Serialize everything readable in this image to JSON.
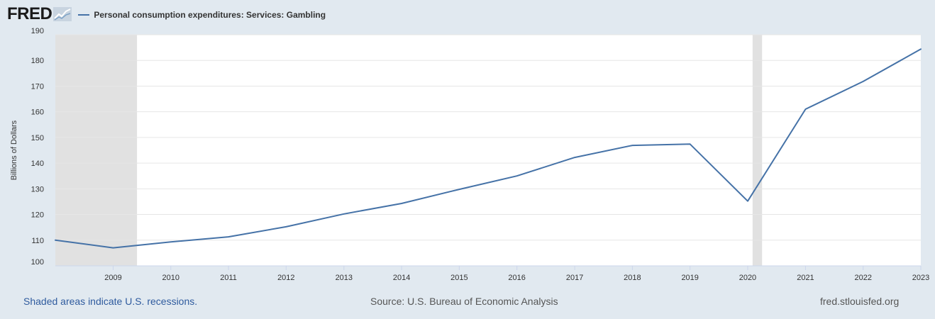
{
  "header": {
    "logo_text": "FRED",
    "logo_icon": "fred-graph-icon"
  },
  "legend": {
    "label": "Personal consumption expenditures: Services: Gambling",
    "color": "#4572a7"
  },
  "footer": {
    "note": "Shaded areas indicate U.S. recessions.",
    "source": "Source: U.S. Bureau of Economic Analysis",
    "url": "fred.stlouisfed.org"
  },
  "chart_data": {
    "type": "line",
    "title": "",
    "xlabel": "",
    "ylabel": "Billions of Dollars",
    "xlim": [
      "2008-01-01",
      "2023-01-01"
    ],
    "ylim": [
      100,
      190
    ],
    "yticks": [
      100,
      110,
      120,
      130,
      140,
      150,
      160,
      170,
      180,
      190
    ],
    "xticks": [
      "2009",
      "2010",
      "2011",
      "2012",
      "2013",
      "2014",
      "2015",
      "2016",
      "2017",
      "2018",
      "2019",
      "2020",
      "2021",
      "2022",
      "2023"
    ],
    "grid": true,
    "legend_position": "top-left",
    "recession_shading": [
      {
        "start": "2008-01-01",
        "end": "2009-06-01"
      },
      {
        "start": "2020-02-01",
        "end": "2020-04-01"
      }
    ],
    "series": [
      {
        "name": "Personal consumption expenditures: Services: Gambling",
        "color": "#4572a7",
        "x": [
          "2008-01-01",
          "2009-01-01",
          "2010-01-01",
          "2011-01-01",
          "2012-01-01",
          "2013-01-01",
          "2014-01-01",
          "2015-01-01",
          "2016-01-01",
          "2017-01-01",
          "2018-01-01",
          "2019-01-01",
          "2020-01-01",
          "2021-01-01",
          "2022-01-01",
          "2023-01-01"
        ],
        "values": [
          110.0,
          107.0,
          109.3,
          111.3,
          115.2,
          120.2,
          124.3,
          129.8,
          135.0,
          142.2,
          146.9,
          147.4,
          125.2,
          161.0,
          171.8,
          184.4
        ]
      }
    ]
  }
}
